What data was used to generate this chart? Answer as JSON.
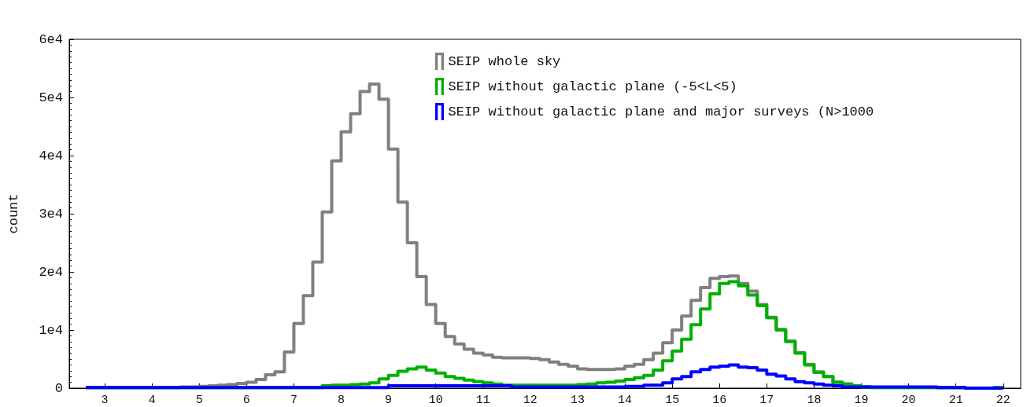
{
  "chart_data": {
    "type": "histogram",
    "ylabel": "count",
    "bins": [
      2.6,
      2.8,
      3.0,
      3.2,
      3.4,
      3.6,
      3.8,
      4.0,
      4.2,
      4.4,
      4.6,
      4.8,
      5.0,
      5.2,
      5.4,
      5.6,
      5.8,
      6.0,
      6.2,
      6.4,
      6.6,
      6.8,
      7.0,
      7.2,
      7.4,
      7.6,
      7.8,
      8.0,
      8.2,
      8.4,
      8.6,
      8.8,
      9.0,
      9.2,
      9.4,
      9.6,
      9.8,
      10.0,
      10.2,
      10.4,
      10.6,
      10.8,
      11.0,
      11.2,
      11.4,
      11.6,
      11.8,
      12.0,
      12.2,
      12.4,
      12.6,
      12.8,
      13.0,
      13.2,
      13.4,
      13.6,
      13.8,
      14.0,
      14.2,
      14.4,
      14.6,
      14.8,
      15.0,
      15.2,
      15.4,
      15.6,
      15.8,
      16.0,
      16.2,
      16.4,
      16.6,
      16.8,
      17.0,
      17.2,
      17.4,
      17.6,
      17.8,
      18.0,
      18.2,
      18.4,
      18.6,
      18.8,
      19.0,
      19.2,
      19.4,
      19.6,
      19.8,
      20.0,
      20.2,
      20.4,
      20.6,
      20.8,
      21.0,
      21.2,
      21.4,
      21.6,
      21.8,
      22.0
    ],
    "series": [
      {
        "name": "SEIP whole sky",
        "color": "#808080",
        "values": [
          100,
          100,
          100,
          100,
          100,
          100,
          100,
          100,
          100,
          100,
          200,
          200,
          300,
          400,
          500,
          600,
          800,
          1000,
          1500,
          2300,
          2800,
          6200,
          11100,
          15900,
          21700,
          30300,
          39100,
          44100,
          47200,
          51000,
          52300,
          49700,
          41100,
          32000,
          25000,
          19200,
          14400,
          11100,
          8900,
          7600,
          6700,
          6000,
          5700,
          5300,
          5200,
          5200,
          5200,
          5100,
          4900,
          4500,
          4100,
          3800,
          3300,
          3200,
          3200,
          3200,
          3300,
          3800,
          4100,
          4900,
          6000,
          7800,
          10000,
          12400,
          15100,
          17300,
          18900,
          19200,
          19300,
          18000,
          16700,
          14400,
          12200,
          10100,
          8100,
          6100,
          4100,
          2800,
          2000,
          1000,
          700,
          400,
          200,
          100,
          100,
          100,
          100,
          100,
          100,
          100,
          100,
          100,
          100,
          0,
          0,
          0,
          100
        ]
      },
      {
        "name": "SEIP without galactic plane (-5<L<5)",
        "color": "#00b000",
        "values": [
          100,
          100,
          100,
          100,
          100,
          100,
          100,
          100,
          100,
          100,
          100,
          100,
          100,
          100,
          100,
          100,
          100,
          100,
          100,
          100,
          100,
          100,
          100,
          100,
          100,
          400,
          500,
          500,
          600,
          700,
          900,
          1600,
          2200,
          2900,
          3300,
          3600,
          3100,
          2600,
          2000,
          1700,
          1400,
          1100,
          900,
          700,
          500,
          500,
          500,
          500,
          500,
          500,
          500,
          500,
          600,
          700,
          900,
          1000,
          1200,
          1500,
          1800,
          2200,
          3100,
          4700,
          6400,
          8400,
          10900,
          13600,
          16200,
          18000,
          18300,
          17600,
          16000,
          14200,
          12100,
          10000,
          8000,
          6000,
          4000,
          2700,
          2000,
          1000,
          700,
          400,
          200,
          100,
          100,
          100,
          100,
          100,
          100,
          100,
          100,
          100,
          100,
          0,
          0,
          0,
          100
        ]
      },
      {
        "name": "SEIP without galactic plane and major surveys (N>1000",
        "color": "#0000ff",
        "values": [
          100,
          100,
          100,
          100,
          100,
          100,
          100,
          100,
          100,
          100,
          100,
          100,
          100,
          100,
          100,
          100,
          100,
          100,
          100,
          100,
          100,
          100,
          100,
          100,
          100,
          100,
          100,
          100,
          100,
          100,
          100,
          100,
          400,
          400,
          400,
          400,
          400,
          400,
          400,
          400,
          400,
          400,
          400,
          400,
          400,
          200,
          200,
          200,
          200,
          200,
          200,
          200,
          200,
          200,
          200,
          200,
          200,
          300,
          300,
          500,
          500,
          900,
          1600,
          2000,
          2800,
          3200,
          3600,
          3800,
          4000,
          3600,
          3500,
          3100,
          2400,
          2100,
          1600,
          1100,
          900,
          700,
          500,
          400,
          200,
          200,
          200,
          200,
          200,
          200,
          200,
          200,
          200,
          200,
          100,
          100,
          100,
          0,
          0,
          0,
          0
        ]
      }
    ],
    "xlim": [
      2.25,
      22.37
    ],
    "xticks": [
      3,
      4,
      5,
      6,
      7,
      8,
      9,
      10,
      11,
      12,
      13,
      14,
      15,
      16,
      17,
      18,
      19,
      20,
      21,
      22
    ],
    "ylim": [
      0,
      60000
    ],
    "yticks": [
      {
        "value": 0,
        "label": "0"
      },
      {
        "value": 10000,
        "label": "1e4"
      },
      {
        "value": 20000,
        "label": "2e4"
      },
      {
        "value": 30000,
        "label": "3e4"
      },
      {
        "value": 40000,
        "label": "4e4"
      },
      {
        "value": 50000,
        "label": "5e4"
      },
      {
        "value": 60000,
        "label": "6e4"
      }
    ],
    "legend": "top",
    "grid": false
  }
}
